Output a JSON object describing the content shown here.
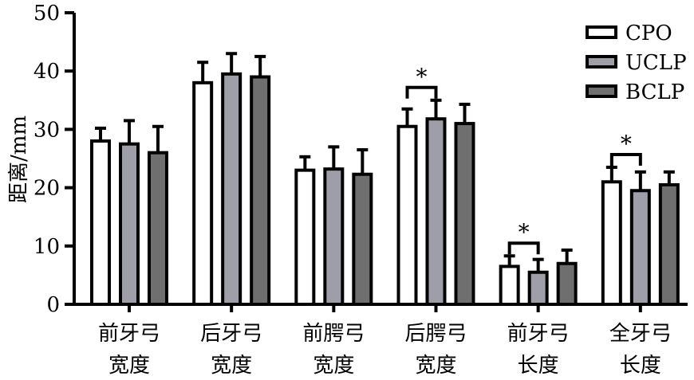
{
  "chart_data": {
    "type": "bar",
    "ylabel": "距离/mm",
    "xlabel": "",
    "ylim": [
      0,
      50
    ],
    "yticks": [
      0,
      10,
      20,
      30,
      40,
      50
    ],
    "legend_position": "top-right",
    "categories": [
      [
        "前牙弓",
        "宽度"
      ],
      [
        "后牙弓",
        "宽度"
      ],
      [
        "前腭弓",
        "宽度"
      ],
      [
        "后腭弓",
        "宽度"
      ],
      [
        "前牙弓",
        "长度"
      ],
      [
        "全牙弓",
        "长度"
      ]
    ],
    "series": [
      {
        "name": "CPO",
        "color": "#ffffff",
        "values": [
          28.0,
          38.0,
          23.0,
          30.5,
          6.5,
          21.0
        ],
        "errors": [
          2.2,
          3.5,
          2.3,
          3.0,
          1.8,
          2.5
        ]
      },
      {
        "name": "UCLP",
        "color": "#9e9ea8",
        "values": [
          27.5,
          39.5,
          23.2,
          31.8,
          5.5,
          19.5
        ],
        "errors": [
          4.0,
          3.5,
          3.8,
          3.2,
          2.2,
          3.2
        ]
      },
      {
        "name": "BCLP",
        "color": "#6f6f6f",
        "values": [
          26.0,
          39.0,
          22.3,
          31.0,
          7.0,
          20.5
        ],
        "errors": [
          4.5,
          3.5,
          4.2,
          3.3,
          2.3,
          2.2
        ]
      }
    ],
    "significance": [
      {
        "category_index": 3,
        "from_series": 0,
        "to_series": 1,
        "label": "*"
      },
      {
        "category_index": 4,
        "from_series": 0,
        "to_series": 1,
        "label": "*"
      },
      {
        "category_index": 5,
        "from_series": 0,
        "to_series": 1,
        "label": "*"
      }
    ],
    "grid": false
  }
}
